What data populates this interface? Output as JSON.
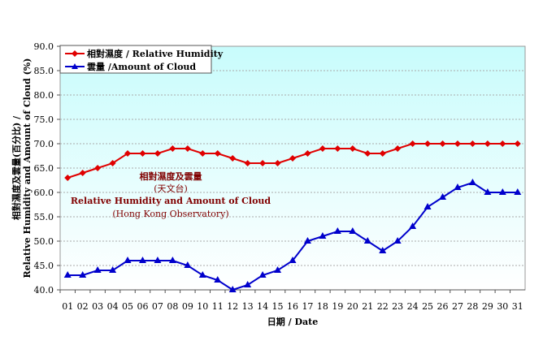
{
  "chart_data": {
    "type": "line",
    "title": "",
    "annotation": [
      "相對濕度及雲量",
      "(天文台)",
      "Relative Humidity and Amount of Cloud",
      "(Hong Kong Observatory)"
    ],
    "xlabel": "日期 / Date",
    "ylabel_lines": [
      "相對濕度及雲量(百分比) /",
      "Relative Humidity and Amount of Cloud (%)"
    ],
    "ylim": [
      40,
      90
    ],
    "yticks": [
      "40.0",
      "45.0",
      "50.0",
      "55.0",
      "60.0",
      "65.0",
      "70.0",
      "75.0",
      "80.0",
      "85.0",
      "90.0"
    ],
    "grid": true,
    "legend": "top-left",
    "categories": [
      "01",
      "02",
      "03",
      "04",
      "05",
      "06",
      "07",
      "08",
      "09",
      "10",
      "11",
      "12",
      "13",
      "14",
      "15",
      "16",
      "17",
      "18",
      "19",
      "20",
      "21",
      "22",
      "23",
      "24",
      "25",
      "26",
      "27",
      "28",
      "29",
      "30",
      "31"
    ],
    "series": [
      {
        "name": "相對濕度 / Relative Humidity",
        "color": "#e00000",
        "marker": "diamond",
        "values": [
          63,
          64,
          65,
          66,
          68,
          68,
          68,
          69,
          69,
          68,
          68,
          67,
          66,
          66,
          66,
          67,
          68,
          69,
          69,
          69,
          68,
          68,
          69,
          70,
          70,
          70,
          70,
          70,
          70,
          70,
          70
        ]
      },
      {
        "name": "雲量 /Amount of Cloud",
        "color": "#0000cc",
        "marker": "triangle",
        "values": [
          43,
          43,
          44,
          44,
          46,
          46,
          46,
          46,
          45,
          43,
          42,
          40,
          41,
          43,
          44,
          46,
          50,
          51,
          52,
          52,
          50,
          48,
          50,
          53,
          57,
          59,
          61,
          62,
          60,
          60,
          60
        ]
      }
    ]
  }
}
